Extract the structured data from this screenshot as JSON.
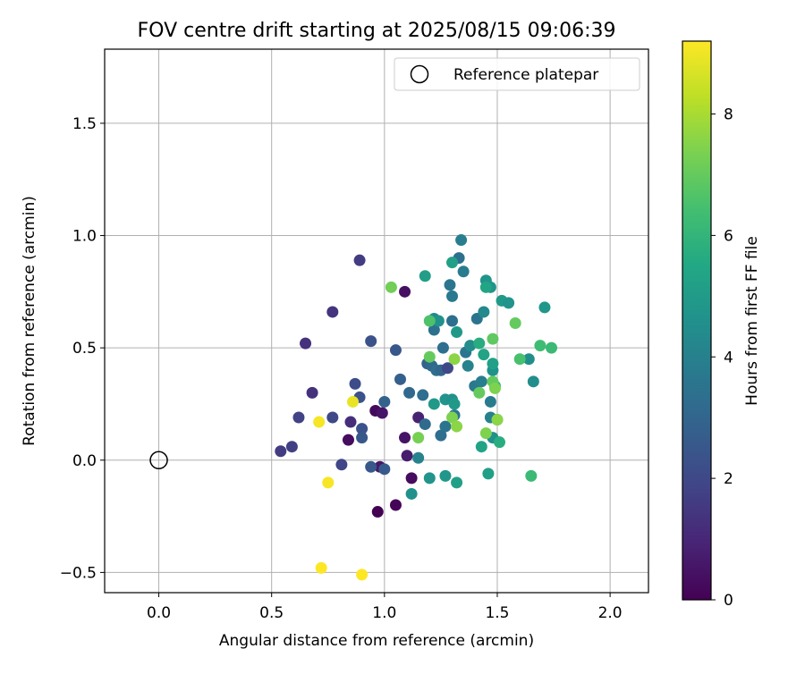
{
  "chart_data": {
    "type": "scatter",
    "title": "FOV centre drift starting at 2025/08/15 09:06:39",
    "xlabel": "Angular distance from reference (arcmin)",
    "ylabel": "Rotation from reference (arcmin)",
    "xlim": [
      -0.24,
      2.17
    ],
    "ylim": [
      -0.59,
      1.83
    ],
    "xticks": [
      0.0,
      0.5,
      1.0,
      1.5,
      2.0
    ],
    "xtick_labels": [
      "0.0",
      "0.5",
      "1.0",
      "1.5",
      "2.0"
    ],
    "yticks": [
      -0.5,
      0.0,
      0.5,
      1.0,
      1.5
    ],
    "ytick_labels": [
      "−0.5",
      "0.0",
      "0.5",
      "1.0",
      "1.5"
    ],
    "grid": true,
    "legend": {
      "location": "upper-right",
      "entries": [
        "Reference platepar"
      ]
    },
    "reference_point": {
      "x": 0.0,
      "y": 0.0,
      "label": "Reference platepar",
      "marker": "open-circle"
    },
    "colorbar": {
      "label": "Hours from first FF file",
      "colormap": "viridis",
      "range": [
        0,
        9.2
      ],
      "ticks": [
        0,
        2,
        4,
        6,
        8
      ],
      "tick_labels": [
        "0",
        "2",
        "4",
        "6",
        "8"
      ]
    },
    "points": [
      {
        "x": 0.97,
        "y": -0.23,
        "h": 0.0
      },
      {
        "x": 1.05,
        "y": -0.2,
        "h": 0.1
      },
      {
        "x": 1.12,
        "y": -0.08,
        "h": 0.3
      },
      {
        "x": 0.84,
        "y": 0.09,
        "h": 0.3
      },
      {
        "x": 0.96,
        "y": 0.22,
        "h": 0.2
      },
      {
        "x": 0.99,
        "y": 0.21,
        "h": 0.5
      },
      {
        "x": 1.09,
        "y": 0.1,
        "h": 0.5
      },
      {
        "x": 1.09,
        "y": 0.75,
        "h": 0.4
      },
      {
        "x": 0.98,
        "y": -0.03,
        "h": 0.6
      },
      {
        "x": 1.1,
        "y": 0.02,
        "h": 0.7
      },
      {
        "x": 1.15,
        "y": 0.19,
        "h": 0.9
      },
      {
        "x": 0.85,
        "y": 0.17,
        "h": 1.2
      },
      {
        "x": 0.68,
        "y": 0.3,
        "h": 1.3
      },
      {
        "x": 0.65,
        "y": 0.52,
        "h": 1.3
      },
      {
        "x": 0.77,
        "y": 0.66,
        "h": 1.4
      },
      {
        "x": 0.89,
        "y": 0.89,
        "h": 1.6
      },
      {
        "x": 0.54,
        "y": 0.04,
        "h": 1.6
      },
      {
        "x": 0.59,
        "y": 0.06,
        "h": 1.7
      },
      {
        "x": 0.62,
        "y": 0.19,
        "h": 1.8
      },
      {
        "x": 0.81,
        "y": -0.02,
        "h": 1.9
      },
      {
        "x": 0.77,
        "y": 0.19,
        "h": 2.0
      },
      {
        "x": 0.87,
        "y": 0.34,
        "h": 2.1
      },
      {
        "x": 0.89,
        "y": 0.28,
        "h": 2.3
      },
      {
        "x": 0.9,
        "y": 0.14,
        "h": 2.3
      },
      {
        "x": 0.9,
        "y": 0.1,
        "h": 2.5
      },
      {
        "x": 0.94,
        "y": 0.53,
        "h": 2.3
      },
      {
        "x": 0.94,
        "y": -0.03,
        "h": 2.5
      },
      {
        "x": 1.0,
        "y": -0.04,
        "h": 2.6
      },
      {
        "x": 1.0,
        "y": 0.26,
        "h": 2.9
      },
      {
        "x": 1.05,
        "y": 0.49,
        "h": 2.5
      },
      {
        "x": 1.07,
        "y": 0.36,
        "h": 2.8
      },
      {
        "x": 1.11,
        "y": 0.3,
        "h": 3.1
      },
      {
        "x": 1.17,
        "y": 0.29,
        "h": 3.3
      },
      {
        "x": 1.18,
        "y": 0.16,
        "h": 3.2
      },
      {
        "x": 1.19,
        "y": 0.43,
        "h": 2.9
      },
      {
        "x": 1.21,
        "y": 0.42,
        "h": 3.1
      },
      {
        "x": 1.22,
        "y": 0.58,
        "h": 3.4
      },
      {
        "x": 1.23,
        "y": 0.4,
        "h": 3.3
      },
      {
        "x": 1.25,
        "y": 0.11,
        "h": 3.3
      },
      {
        "x": 1.25,
        "y": 0.4,
        "h": 3.0
      },
      {
        "x": 1.26,
        "y": 0.5,
        "h": 3.3
      },
      {
        "x": 1.27,
        "y": 0.15,
        "h": 3.5
      },
      {
        "x": 1.28,
        "y": 0.41,
        "h": 2.0
      },
      {
        "x": 1.29,
        "y": 0.78,
        "h": 3.6
      },
      {
        "x": 1.3,
        "y": 0.73,
        "h": 3.7
      },
      {
        "x": 1.3,
        "y": 0.62,
        "h": 3.4
      },
      {
        "x": 1.31,
        "y": 0.2,
        "h": 3.6
      },
      {
        "x": 1.33,
        "y": 0.9,
        "h": 3.4
      },
      {
        "x": 1.34,
        "y": 0.98,
        "h": 3.9
      },
      {
        "x": 1.35,
        "y": 0.84,
        "h": 3.8
      },
      {
        "x": 1.36,
        "y": 0.48,
        "h": 3.6
      },
      {
        "x": 1.37,
        "y": 0.42,
        "h": 4.1
      },
      {
        "x": 1.38,
        "y": 0.51,
        "h": 4.4
      },
      {
        "x": 1.4,
        "y": 0.33,
        "h": 3.7
      },
      {
        "x": 1.41,
        "y": 0.63,
        "h": 3.5
      },
      {
        "x": 1.43,
        "y": 0.35,
        "h": 3.9
      },
      {
        "x": 1.44,
        "y": 0.66,
        "h": 4.3
      },
      {
        "x": 1.45,
        "y": 0.8,
        "h": 4.7
      },
      {
        "x": 1.47,
        "y": 0.77,
        "h": 4.7
      },
      {
        "x": 1.47,
        "y": 0.26,
        "h": 3.8
      },
      {
        "x": 1.47,
        "y": 0.19,
        "h": 4.0
      },
      {
        "x": 1.48,
        "y": 0.4,
        "h": 4.6
      },
      {
        "x": 1.48,
        "y": 0.1,
        "h": 4.6
      },
      {
        "x": 1.5,
        "y": 0.18,
        "h": 5.1
      },
      {
        "x": 1.52,
        "y": 0.71,
        "h": 4.9
      },
      {
        "x": 1.55,
        "y": 0.7,
        "h": 4.7
      },
      {
        "x": 1.64,
        "y": 0.45,
        "h": 4.5
      },
      {
        "x": 1.66,
        "y": 0.35,
        "h": 4.5
      },
      {
        "x": 1.71,
        "y": 0.68,
        "h": 4.8
      },
      {
        "x": 1.12,
        "y": -0.15,
        "h": 4.6
      },
      {
        "x": 1.15,
        "y": 0.01,
        "h": 4.1
      },
      {
        "x": 1.2,
        "y": -0.08,
        "h": 4.7
      },
      {
        "x": 1.22,
        "y": 0.25,
        "h": 4.9
      },
      {
        "x": 1.22,
        "y": 0.63,
        "h": 4.3
      },
      {
        "x": 1.24,
        "y": 0.62,
        "h": 4.6
      },
      {
        "x": 1.27,
        "y": 0.27,
        "h": 4.7
      },
      {
        "x": 1.27,
        "y": -0.07,
        "h": 4.8
      },
      {
        "x": 1.3,
        "y": 0.27,
        "h": 4.6
      },
      {
        "x": 1.31,
        "y": 0.25,
        "h": 4.9
      },
      {
        "x": 1.32,
        "y": 0.57,
        "h": 4.9
      },
      {
        "x": 1.32,
        "y": -0.1,
        "h": 5.2
      },
      {
        "x": 1.42,
        "y": 0.52,
        "h": 5.7
      },
      {
        "x": 1.43,
        "y": 0.06,
        "h": 5.3
      },
      {
        "x": 1.44,
        "y": 0.47,
        "h": 5.3
      },
      {
        "x": 1.45,
        "y": 0.77,
        "h": 5.4
      },
      {
        "x": 1.46,
        "y": -0.06,
        "h": 5.2
      },
      {
        "x": 1.49,
        "y": 0.33,
        "h": 5.8
      },
      {
        "x": 1.51,
        "y": 0.08,
        "h": 5.7
      },
      {
        "x": 1.48,
        "y": 0.43,
        "h": 5.2
      },
      {
        "x": 1.18,
        "y": 0.82,
        "h": 5.1
      },
      {
        "x": 1.3,
        "y": 0.88,
        "h": 5.2
      },
      {
        "x": 1.65,
        "y": -0.07,
        "h": 6.2
      },
      {
        "x": 1.69,
        "y": 0.51,
        "h": 6.3
      },
      {
        "x": 1.74,
        "y": 0.5,
        "h": 6.2
      },
      {
        "x": 1.58,
        "y": 0.61,
        "h": 7.0
      },
      {
        "x": 1.6,
        "y": 0.45,
        "h": 6.5
      },
      {
        "x": 1.2,
        "y": 0.46,
        "h": 7.0
      },
      {
        "x": 1.2,
        "y": 0.62,
        "h": 6.6
      },
      {
        "x": 1.3,
        "y": 0.19,
        "h": 7.4
      },
      {
        "x": 1.32,
        "y": 0.15,
        "h": 7.6
      },
      {
        "x": 1.42,
        "y": 0.3,
        "h": 7.0
      },
      {
        "x": 1.45,
        "y": 0.12,
        "h": 7.4
      },
      {
        "x": 1.48,
        "y": 0.54,
        "h": 6.9
      },
      {
        "x": 1.48,
        "y": 0.35,
        "h": 7.0
      },
      {
        "x": 1.49,
        "y": 0.32,
        "h": 7.4
      },
      {
        "x": 1.5,
        "y": 0.18,
        "h": 7.6
      },
      {
        "x": 1.03,
        "y": 0.77,
        "h": 7.2
      },
      {
        "x": 1.15,
        "y": 0.1,
        "h": 7.3
      },
      {
        "x": 1.31,
        "y": 0.45,
        "h": 7.6
      },
      {
        "x": 0.86,
        "y": 0.26,
        "h": 8.9
      },
      {
        "x": 0.71,
        "y": 0.17,
        "h": 9.1
      },
      {
        "x": 0.75,
        "y": -0.1,
        "h": 9.1
      },
      {
        "x": 0.72,
        "y": -0.48,
        "h": 9.2
      },
      {
        "x": 0.9,
        "y": -0.51,
        "h": 9.2
      }
    ]
  }
}
